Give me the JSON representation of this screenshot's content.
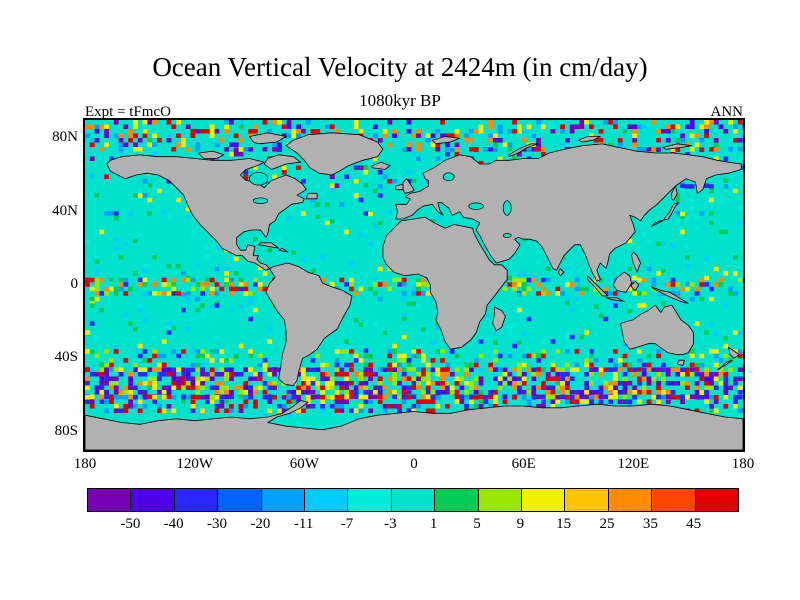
{
  "header": {
    "title": "Ocean Vertical Velocity at 2424m (in cm/day)",
    "subtitle": "1080kyr BP",
    "experiment": "Expt = tFmcO",
    "season": "ANN"
  },
  "axes": {
    "lat_ticks": [
      {
        "label": "80N",
        "lat": 80
      },
      {
        "label": "40N",
        "lat": 40
      },
      {
        "label": "0",
        "lat": 0
      },
      {
        "label": "40S",
        "lat": -40
      },
      {
        "label": "80S",
        "lat": -80
      }
    ],
    "lon_ticks": [
      {
        "label": "180",
        "lon": -180
      },
      {
        "label": "120W",
        "lon": -120
      },
      {
        "label": "60W",
        "lon": -60
      },
      {
        "label": "0",
        "lon": 0
      },
      {
        "label": "60E",
        "lon": 60
      },
      {
        "label": "120E",
        "lon": 120
      },
      {
        "label": "180",
        "lon": 180
      }
    ]
  },
  "colorbar": {
    "labels": [
      "-50",
      "-40",
      "-30",
      "-20",
      "-11",
      "-7",
      "-3",
      "1",
      "5",
      "9",
      "15",
      "25",
      "35",
      "45"
    ]
  },
  "chart_data": {
    "type": "heatmap",
    "title": "Ocean Vertical Velocity at 2424m (in cm/day)",
    "variable": "ocean vertical velocity",
    "depth_m": 2424,
    "units": "cm/day",
    "time_label": "1080kyr BP",
    "season": "ANN",
    "experiment": "tFmcO",
    "projection": "equirectangular",
    "lon_range": [
      -180,
      180
    ],
    "lat_range": [
      -90,
      90
    ],
    "lon_ticks": [
      -180,
      -120,
      -60,
      0,
      60,
      120,
      180
    ],
    "lat_ticks": [
      80,
      40,
      0,
      -40,
      -80
    ],
    "levels": [
      -50,
      -40,
      -30,
      -20,
      -11,
      -7,
      -3,
      1,
      5,
      9,
      15,
      25,
      35,
      45
    ],
    "palette": [
      "#7800b4",
      "#5000e6",
      "#2828ff",
      "#0064ff",
      "#00a0ff",
      "#00ccff",
      "#00ead8",
      "#00e2cc",
      "#00cc55",
      "#99e600",
      "#f2f200",
      "#ffc400",
      "#ff8c00",
      "#ff4600",
      "#e10000"
    ],
    "land_color": "#b1b1b1",
    "coast_color": "#000000",
    "ocean_base_color": "#00e2cc",
    "dominant_value_range": [
      -3,
      1
    ],
    "features": [
      "broad ocean interior dominated by weak vertical velocities (-3 to 1 cm/day, turquoise)",
      "intense multicoloured band of strong up/downwelling along the Southern Ocean between about 35S and 68S (values spanning -50 to >45 cm/day)",
      "narrow high-variability stripe along the equator in the Pacific, Atlantic and Indian basins",
      "scattered strong cells in the subpolar North Atlantic, North Pacific and Arctic north of 75N",
      "continents masked in grey with black coastlines; Antarctica grey along the bottom of the map"
    ],
    "noise_bands": [
      {
        "lat_min": -75,
        "lat_max": 90,
        "density": 0.03,
        "color_indices": [
          5,
          6,
          8
        ]
      },
      {
        "lat_min": 75,
        "lat_max": 90,
        "density": 0.3,
        "color_indices": [
          14,
          0,
          10,
          4,
          12,
          1
        ]
      },
      {
        "lat_min": 55,
        "lat_max": 75,
        "density": 0.13,
        "color_indices": [
          0,
          14,
          10,
          4,
          2,
          6
        ]
      },
      {
        "lat_min": 40,
        "lat_max": 55,
        "density": 0.08,
        "color_indices": [
          4,
          2,
          10,
          8,
          6
        ]
      },
      {
        "lat_min": 10,
        "lat_max": 40,
        "density": 0.035,
        "color_indices": [
          5,
          6,
          8,
          10
        ]
      },
      {
        "lat_min": 4,
        "lat_max": 10,
        "density": 0.1,
        "color_indices": [
          10,
          8,
          5,
          4
        ]
      },
      {
        "lat_min": -4,
        "lat_max": 4,
        "density": 0.45,
        "color_indices": [
          10,
          8,
          14,
          12,
          9,
          4,
          2
        ]
      },
      {
        "lat_min": -10,
        "lat_max": -4,
        "density": 0.1,
        "color_indices": [
          10,
          8,
          5,
          4
        ]
      },
      {
        "lat_min": -35,
        "lat_max": -10,
        "density": 0.05,
        "color_indices": [
          5,
          6,
          8,
          2,
          10
        ]
      },
      {
        "lat_min": -45,
        "lat_max": -35,
        "density": 0.28,
        "color_indices": [
          10,
          9,
          8,
          2,
          4,
          14
        ]
      },
      {
        "lat_min": -60,
        "lat_max": -45,
        "density": 0.6,
        "color_indices": [
          10,
          14,
          12,
          0,
          2,
          9,
          1
        ]
      },
      {
        "lat_min": -68,
        "lat_max": -60,
        "density": 0.38,
        "color_indices": [
          10,
          14,
          0,
          2,
          4
        ]
      }
    ]
  }
}
